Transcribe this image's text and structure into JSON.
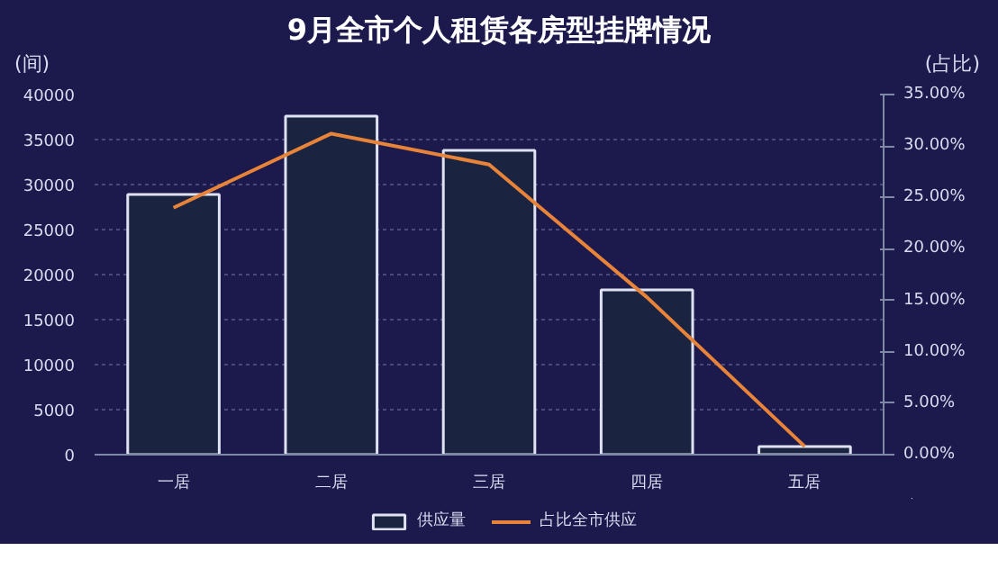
{
  "chart_data": {
    "type": "bar",
    "title": "9月全市个人租赁各房型挂牌情况",
    "ylabel": "(间)",
    "y2label": "(占比)",
    "categories": [
      "一居",
      "二居",
      "三居",
      "四居",
      "五居"
    ],
    "series": [
      {
        "name": "供应量",
        "color": "#1a2440",
        "values": [
          28900,
          37600,
          33800,
          18300,
          900
        ]
      },
      {
        "name": "占比全市供应",
        "type": "line",
        "axis": "y2",
        "color": "#e8833a",
        "values": [
          24.0,
          31.2,
          28.2,
          15.3,
          0.8
        ]
      }
    ],
    "ylim": [
      0,
      40000
    ],
    "yticks": [
      0,
      5000,
      10000,
      15000,
      20000,
      25000,
      30000,
      35000,
      40000
    ],
    "y2lim": [
      0,
      35
    ],
    "y2ticks": [
      {
        "value": 0,
        "label": "0.00%"
      },
      {
        "value": 5,
        "label": "5.00%"
      },
      {
        "value": 10,
        "label": "10.00%"
      },
      {
        "value": 15,
        "label": "15.00%"
      },
      {
        "value": 20,
        "label": "20.00%"
      },
      {
        "value": 25,
        "label": "25.00%"
      },
      {
        "value": 30,
        "label": "30.00%"
      },
      {
        "value": 35,
        "label": "35.00%"
      }
    ],
    "grid": "y",
    "legend": "bottom",
    "marker": "none",
    "line_style": "solid"
  }
}
